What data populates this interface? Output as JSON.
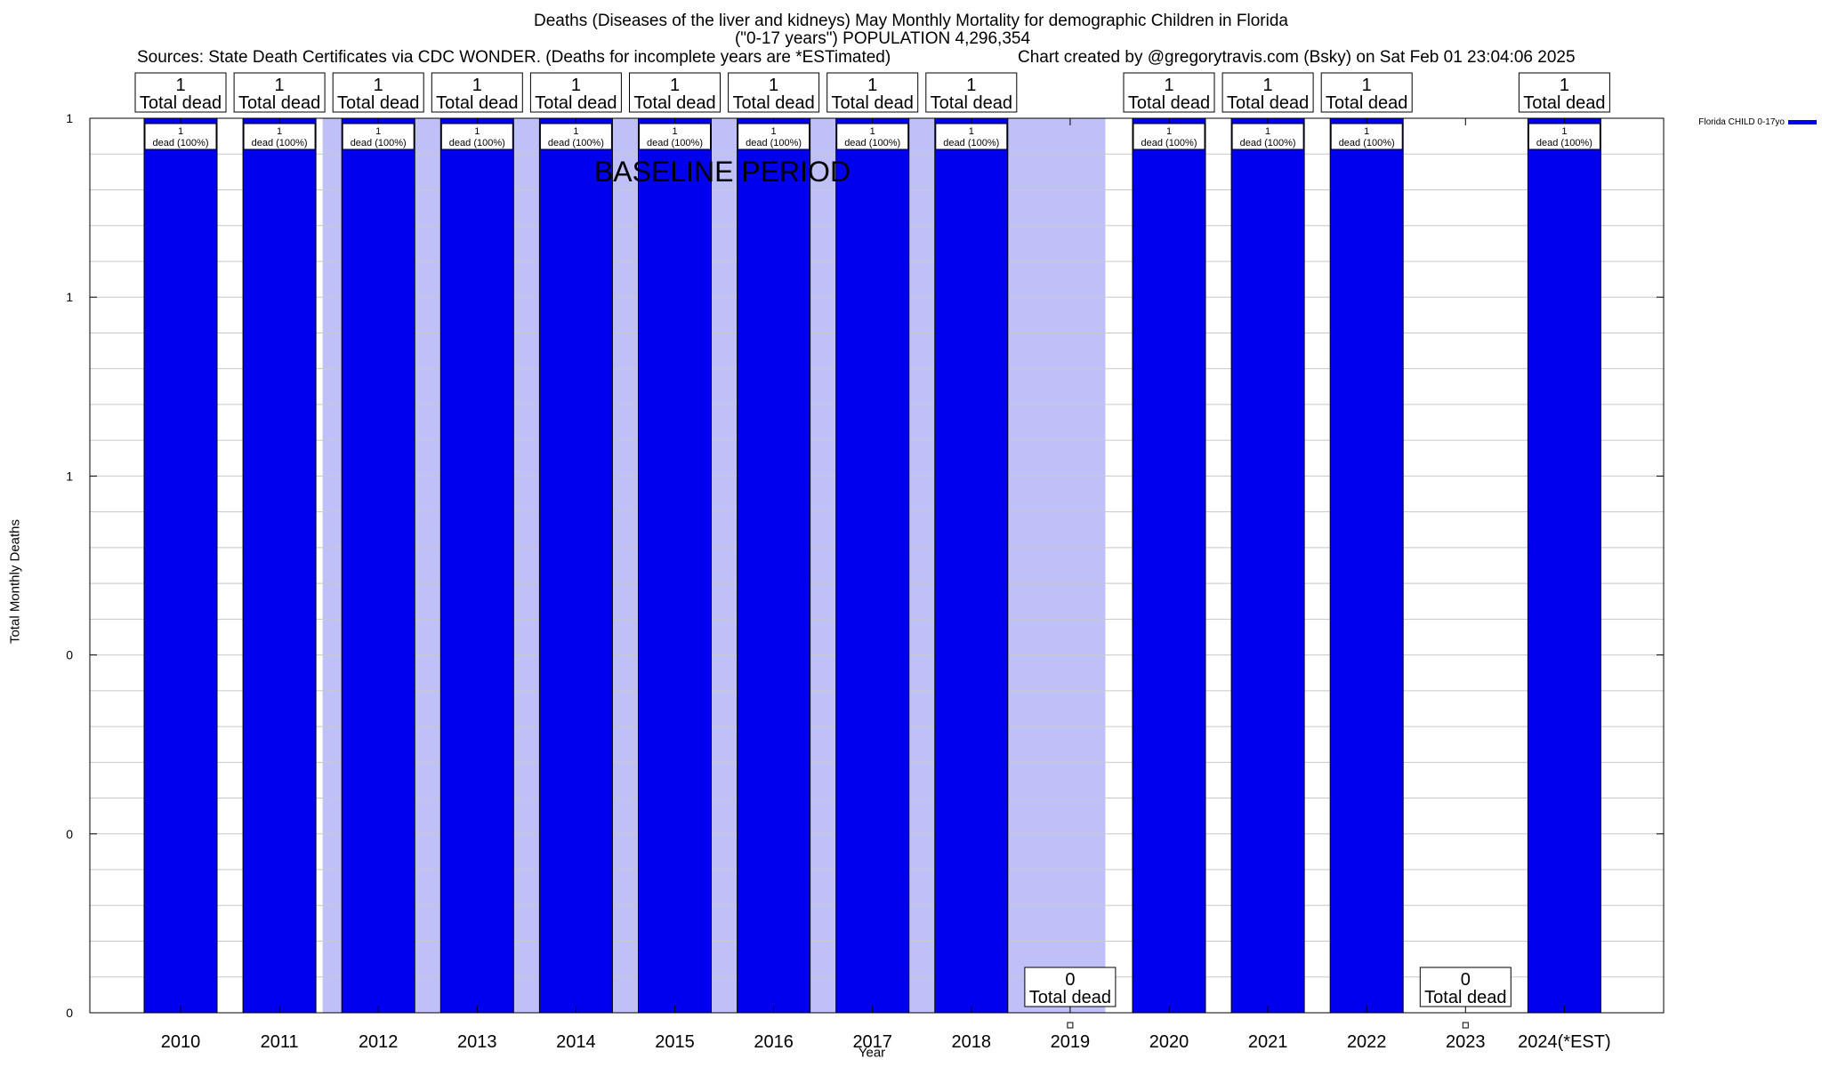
{
  "header": {
    "title_line1": "Deaths (Diseases of the liver and kidneys) May Monthly Mortality for demographic Children in Florida",
    "title_line2": "(\"0-17 years\") POPULATION 4,296,354",
    "sources": "Sources: State Death Certificates via CDC WONDER. (Deaths for incomplete years are *ESTimated)",
    "credit": "Chart created by @gregorytravis.com (Bsky) on Sat Feb 01 23:04:06 2025"
  },
  "chart_data": {
    "type": "bar",
    "title": "Deaths (Diseases of the liver and kidneys) May Monthly Mortality for demographic Children in Florida",
    "xlabel": "Year",
    "ylabel": "Total Monthly Deaths",
    "categories": [
      "2010",
      "2011",
      "2012",
      "2013",
      "2014",
      "2015",
      "2016",
      "2017",
      "2018",
      "2019",
      "2020",
      "2021",
      "2022",
      "2023",
      "2024(*EST)"
    ],
    "series": [
      {
        "name": "Florida CHILD 0-17yo",
        "color": "#0000ee",
        "values": [
          1,
          1,
          1,
          1,
          1,
          1,
          1,
          1,
          1,
          0,
          1,
          1,
          1,
          0,
          1
        ]
      }
    ],
    "ylim": [
      0,
      1
    ],
    "ytick_labels": [
      "0",
      "0",
      "0",
      "1",
      "1",
      "1"
    ],
    "total_label_numbers": [
      "1",
      "1",
      "1",
      "1",
      "1",
      "1",
      "1",
      "1",
      "1",
      "0",
      "1",
      "1",
      "1",
      "0",
      "1"
    ],
    "total_label_text": "Total dead",
    "bar_label_numbers": [
      "1",
      "1",
      "1",
      "1",
      "1",
      "1",
      "1",
      "1",
      "1",
      "",
      "1",
      "1",
      "1",
      "",
      "1"
    ],
    "bar_label_text": "dead (100%)",
    "baseline_label": "BASELINE PERIOD",
    "baseline_range": [
      "2012",
      "2019"
    ],
    "baseline_color": "#c0c0f8",
    "bar_color": "#0000ee",
    "grid": true,
    "legend_position": "top-right"
  }
}
